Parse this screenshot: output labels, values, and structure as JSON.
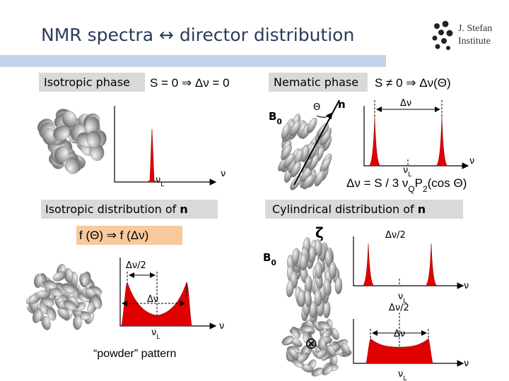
{
  "header": {
    "title": "NMR spectra ↔ director distribution",
    "institute": [
      "J. Stefan",
      "Institute"
    ]
  },
  "isotropic_phase": {
    "label": "Isotropic phase",
    "formula": "S = 0 ⇒ Δν = 0",
    "larmor": [
      "ν",
      {
        "sub": "L"
      }
    ],
    "axis": "ν"
  },
  "nematic_phase": {
    "label": "Nematic phase",
    "formula": "S ≠ 0 ⇒ Δν(Θ)",
    "field": [
      "B",
      {
        "sub": "0"
      }
    ],
    "angle": "Θ",
    "director": "n",
    "splitting": "Δν",
    "larmor": [
      "ν",
      {
        "sub": "L"
      }
    ],
    "axis": "ν",
    "relation": [
      "Δν = S / 3  ν",
      {
        "sub": "Q"
      },
      "P",
      {
        "sub": "2"
      },
      "(cos Θ)"
    ]
  },
  "isotropic_distribution": {
    "label": [
      "Isotropic distribution of ",
      {
        "b": "n"
      }
    ],
    "mapping": "f (Θ) ⇒ f (Δν)",
    "half_splitting": "Δν/2",
    "splitting": "Δν",
    "larmor": [
      "ν",
      {
        "sub": "L"
      }
    ],
    "axis": "ν",
    "caption": "“powder” pattern"
  },
  "cylindrical_distribution": {
    "label": [
      "Cylindrical distribution of ",
      {
        "b": "n"
      }
    ],
    "symmetry_axis": "ζ",
    "field": [
      "B",
      {
        "sub": "0"
      }
    ],
    "aligned": {
      "half_splitting": "Δν/2",
      "larmor": [
        "ν",
        {
          "sub": "L"
        }
      ],
      "axis": "ν"
    },
    "perpendicular": {
      "symbol": "⊗",
      "half_splitting": "Δν/2",
      "splitting": "Δν",
      "larmor": [
        "ν",
        {
          "sub": "L"
        }
      ],
      "axis": "ν"
    }
  }
}
